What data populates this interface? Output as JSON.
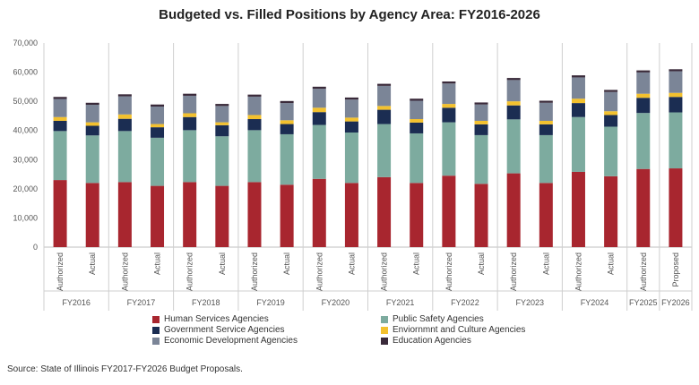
{
  "title": "Budgeted vs. Filled Positions by Agency Area: FY2016-2026",
  "source": "Source: State of Illinois FY2017-FY2026 Budget Proposals.",
  "chart_data": {
    "type": "bar",
    "stacked": true,
    "title": "Budgeted vs. Filled Positions by Agency Area: FY2016-2026",
    "ylim": [
      0,
      70000
    ],
    "yticks": [
      "0",
      "10,000",
      "20,000",
      "30,000",
      "40,000",
      "50,000",
      "60,000",
      "70,000"
    ],
    "ytick_values": [
      0,
      10000,
      20000,
      30000,
      40000,
      50000,
      60000,
      70000
    ],
    "grid": false,
    "legend_position": "bottom",
    "groups": [
      {
        "label": "FY2016",
        "bars": [
          "Authorized",
          "Actual"
        ]
      },
      {
        "label": "FY2017",
        "bars": [
          "Authorized",
          "Actual"
        ]
      },
      {
        "label": "FY2018",
        "bars": [
          "Authorized",
          "Actual"
        ]
      },
      {
        "label": "FY2019",
        "bars": [
          "Authorized",
          "Actual"
        ]
      },
      {
        "label": "FY2020",
        "bars": [
          "Authorized",
          "Actual"
        ]
      },
      {
        "label": "FY2021",
        "bars": [
          "Authorized",
          "Actual"
        ]
      },
      {
        "label": "FY2022",
        "bars": [
          "Authorized",
          "Actual"
        ]
      },
      {
        "label": "FY2023",
        "bars": [
          "Authorized",
          "Actual"
        ]
      },
      {
        "label": "FY2024",
        "bars": [
          "Authorized",
          "Actual"
        ]
      },
      {
        "label": "FY2025",
        "bars": [
          "Authorized"
        ]
      },
      {
        "label": "FY2026",
        "bars": [
          "Proposed"
        ]
      }
    ],
    "series": [
      {
        "name": "Human Services Agencies",
        "color": "#a8262f",
        "values": [
          23000,
          22000,
          22300,
          21000,
          22300,
          21000,
          22300,
          21400,
          23400,
          22000,
          24000,
          22000,
          24500,
          21700,
          25300,
          22000,
          25800,
          24300,
          26800,
          27000
        ]
      },
      {
        "name": "Public Safety Agencies",
        "color": "#7dab9f",
        "values": [
          16800,
          16300,
          17500,
          16500,
          17800,
          17000,
          17800,
          17300,
          18500,
          17300,
          18200,
          17000,
          18300,
          16700,
          18500,
          16400,
          18800,
          17000,
          19200,
          19200
        ]
      },
      {
        "name": "Government Service Agencies",
        "color": "#1b2d52",
        "values": [
          3500,
          3300,
          4200,
          3600,
          4500,
          3800,
          3800,
          3500,
          4400,
          3800,
          4900,
          3700,
          5000,
          3700,
          4800,
          3700,
          4800,
          4000,
          5200,
          5300
        ]
      },
      {
        "name": "Enviornmnt and Culture Agencies",
        "color": "#f3c12e",
        "values": [
          1300,
          1200,
          1500,
          1100,
          1300,
          1000,
          1400,
          1300,
          1500,
          1300,
          1300,
          1200,
          1300,
          1200,
          1400,
          1200,
          1500,
          1300,
          1400,
          1400
        ]
      },
      {
        "name": "Economic Development Agencies",
        "color": "#7b8597",
        "values": [
          6200,
          6000,
          6200,
          6000,
          6000,
          5600,
          6300,
          5900,
          6500,
          6200,
          6900,
          6300,
          7000,
          5600,
          7300,
          6200,
          7300,
          6600,
          7300,
          7400
        ]
      },
      {
        "name": "Education Agencies",
        "color": "#3a2a3a",
        "values": [
          700,
          700,
          700,
          700,
          700,
          700,
          700,
          700,
          700,
          700,
          700,
          700,
          700,
          700,
          700,
          700,
          700,
          700,
          700,
          700
        ]
      }
    ]
  }
}
